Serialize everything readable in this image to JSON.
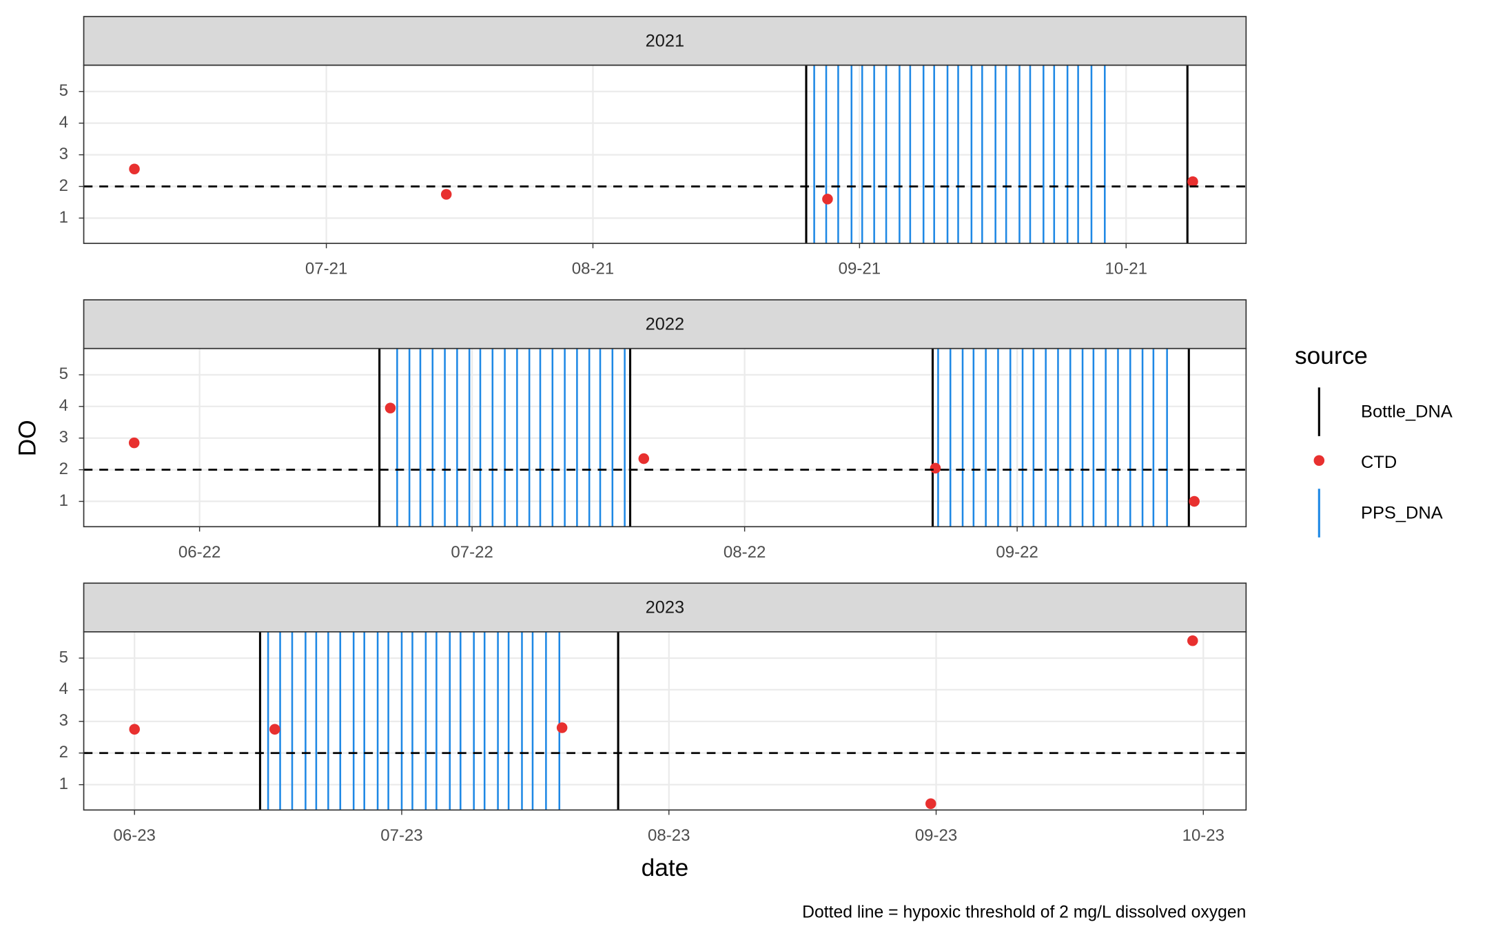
{
  "chart_data": {
    "type": "faceted-events",
    "ylabel": "DO",
    "xlabel": "date",
    "caption": "Dotted line = hypoxic threshold of 2 mg/L dissolved oxygen",
    "legend_title": "source",
    "ylim": [
      0.2,
      5.83
    ],
    "yticks": [
      1,
      2,
      3,
      4,
      5
    ],
    "threshold": 2,
    "grid": true,
    "series": [
      {
        "name": "Bottle_DNA",
        "color": "#000000",
        "mark": "vline"
      },
      {
        "name": "CTD",
        "color": "#e8302f",
        "mark": "point"
      },
      {
        "name": "PPS_DNA",
        "color": "#1e88e5",
        "mark": "vline"
      }
    ],
    "panels": [
      {
        "title": "2021",
        "xlim": [
          6.09,
          10.45
        ],
        "xticks": [
          {
            "value": 7,
            "label": "07-21"
          },
          {
            "value": 8,
            "label": "08-21"
          },
          {
            "value": 9,
            "label": "09-21"
          },
          {
            "value": 10,
            "label": "10-21"
          }
        ],
        "series": [
          {
            "x": [
              8.8,
              10.23
            ]
          },
          {
            "x": [
              6.28,
              7.45,
              8.88,
              10.25
            ],
            "values": [
              2.55,
              1.75,
              1.6,
              2.15
            ]
          },
          {
            "x": [
              8.83,
              8.875,
              8.92,
              8.97,
              9.01,
              9.055,
              9.1,
              9.15,
              9.19,
              9.24,
              9.28,
              9.33,
              9.37,
              9.42,
              9.46,
              9.51,
              9.55,
              9.6,
              9.64,
              9.69,
              9.73,
              9.78,
              9.82,
              9.87,
              9.92
            ]
          }
        ]
      },
      {
        "title": "2022",
        "xlim": [
          5.575,
          9.84
        ],
        "xticks": [
          {
            "value": 6,
            "label": "06-22"
          },
          {
            "value": 7,
            "label": "07-22"
          },
          {
            "value": 8,
            "label": "08-22"
          },
          {
            "value": 9,
            "label": "09-22"
          }
        ],
        "series": [
          {
            "x": [
              6.66,
              7.58,
              8.69,
              9.63
            ]
          },
          {
            "x": [
              5.76,
              6.7,
              7.63,
              8.7,
              9.65
            ],
            "values": [
              2.85,
              3.95,
              2.35,
              2.05,
              1.0
            ]
          },
          {
            "x": [
              6.725,
              6.77,
              6.81,
              6.855,
              6.9,
              6.945,
              6.99,
              7.03,
              7.075,
              7.12,
              7.165,
              7.21,
              7.25,
              7.295,
              7.34,
              7.385,
              7.43,
              7.47,
              7.515,
              7.56,
              8.71,
              8.755,
              8.8,
              8.84,
              8.885,
              8.93,
              8.975,
              9.02,
              9.06,
              9.105,
              9.15,
              9.195,
              9.24,
              9.28,
              9.325,
              9.37,
              9.415,
              9.46,
              9.5,
              9.55
            ]
          }
        ]
      },
      {
        "title": "2023",
        "xlim": [
          5.81,
          10.16
        ],
        "xticks": [
          {
            "value": 6,
            "label": "06-23"
          },
          {
            "value": 7,
            "label": "07-23"
          },
          {
            "value": 8,
            "label": "08-23"
          },
          {
            "value": 9,
            "label": "09-23"
          },
          {
            "value": 10,
            "label": "10-23"
          }
        ],
        "series": [
          {
            "x": [
              6.47,
              7.81
            ]
          },
          {
            "x": [
              6.0,
              6.525,
              7.6,
              8.98,
              9.96
            ],
            "values": [
              2.75,
              2.75,
              2.8,
              0.4,
              5.55
            ]
          },
          {
            "x": [
              6.5,
              6.545,
              6.59,
              6.64,
              6.68,
              6.725,
              6.77,
              6.82,
              6.86,
              6.91,
              6.95,
              7.0,
              7.04,
              7.09,
              7.13,
              7.18,
              7.22,
              7.27,
              7.31,
              7.36,
              7.4,
              7.45,
              7.49,
              7.54,
              7.59
            ]
          }
        ]
      }
    ]
  }
}
